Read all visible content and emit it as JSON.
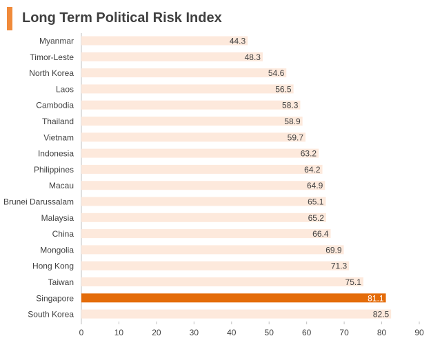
{
  "colors": {
    "accent": "#f08a3a",
    "bar": "#fde9dc",
    "highlight": "#e46c0a",
    "text": "#404040",
    "axis": "#bfbfbf"
  },
  "chart_data": {
    "type": "bar",
    "orientation": "horizontal",
    "title": "Long Term Political Risk Index",
    "categories": [
      "Myanmar",
      "Timor-Leste",
      "North Korea",
      "Laos",
      "Cambodia",
      "Thailand",
      "Vietnam",
      "Indonesia",
      "Philippines",
      "Macau",
      "Brunei Darussalam",
      "Malaysia",
      "China",
      "Mongolia",
      "Hong Kong",
      "Taiwan",
      "Singapore",
      "South Korea"
    ],
    "values": [
      44.3,
      48.3,
      54.6,
      56.5,
      58.3,
      58.9,
      59.7,
      63.2,
      64.2,
      64.9,
      65.1,
      65.2,
      66.4,
      69.9,
      71.3,
      75.1,
      81.1,
      82.5
    ],
    "highlight_category": "Singapore",
    "xlim": [
      0,
      90
    ],
    "xticks": [
      0,
      10,
      20,
      30,
      40,
      50,
      60,
      70,
      80,
      90
    ],
    "xlabel": "",
    "ylabel": "",
    "grid": false,
    "data_labels": true
  }
}
